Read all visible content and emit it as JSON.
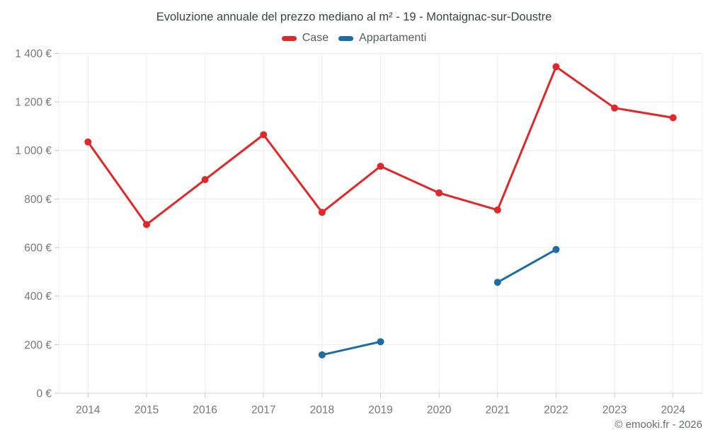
{
  "footer": {
    "copyright": "© emooki.fr - 2026"
  },
  "colors": {
    "grid": "#ececec",
    "zero_axis": "#d4d4d4",
    "tick": "#c9c9c9",
    "axis_text": "#75787b",
    "title_text": "#3e4245",
    "legend_text": "#5a5d60",
    "case_red": "#e0282a",
    "appartamenti_blue": "#1b6da3"
  },
  "chart_data": {
    "type": "line",
    "title": "Evoluzione annuale del prezzo mediano al m² - 19 - Montaignac-sur-Doustre",
    "xlabel": "",
    "ylabel": "",
    "legend_position": "top",
    "grid": true,
    "ylim": [
      0,
      1400
    ],
    "categories": [
      "2014",
      "2015",
      "2016",
      "2017",
      "2018",
      "2019",
      "2020",
      "2021",
      "2022",
      "2023",
      "2024"
    ],
    "y_ticks": [
      {
        "value": 0,
        "label": "0 €"
      },
      {
        "value": 200,
        "label": "200 €"
      },
      {
        "value": 400,
        "label": "400 €"
      },
      {
        "value": 600,
        "label": "600 €"
      },
      {
        "value": 800,
        "label": "800 €"
      },
      {
        "value": 1000,
        "label": "1 000 €"
      },
      {
        "value": 1200,
        "label": "1 200 €"
      },
      {
        "value": 1400,
        "label": "1 400 €"
      }
    ],
    "series": [
      {
        "name": "Case",
        "color": "#e0282a",
        "values": [
          1035,
          695,
          880,
          1065,
          745,
          935,
          825,
          755,
          1345,
          1175,
          1135
        ]
      },
      {
        "name": "Appartamenti",
        "color": "#1b6da3",
        "values": [
          null,
          null,
          null,
          null,
          158,
          212,
          null,
          457,
          592,
          null,
          null
        ]
      }
    ]
  }
}
